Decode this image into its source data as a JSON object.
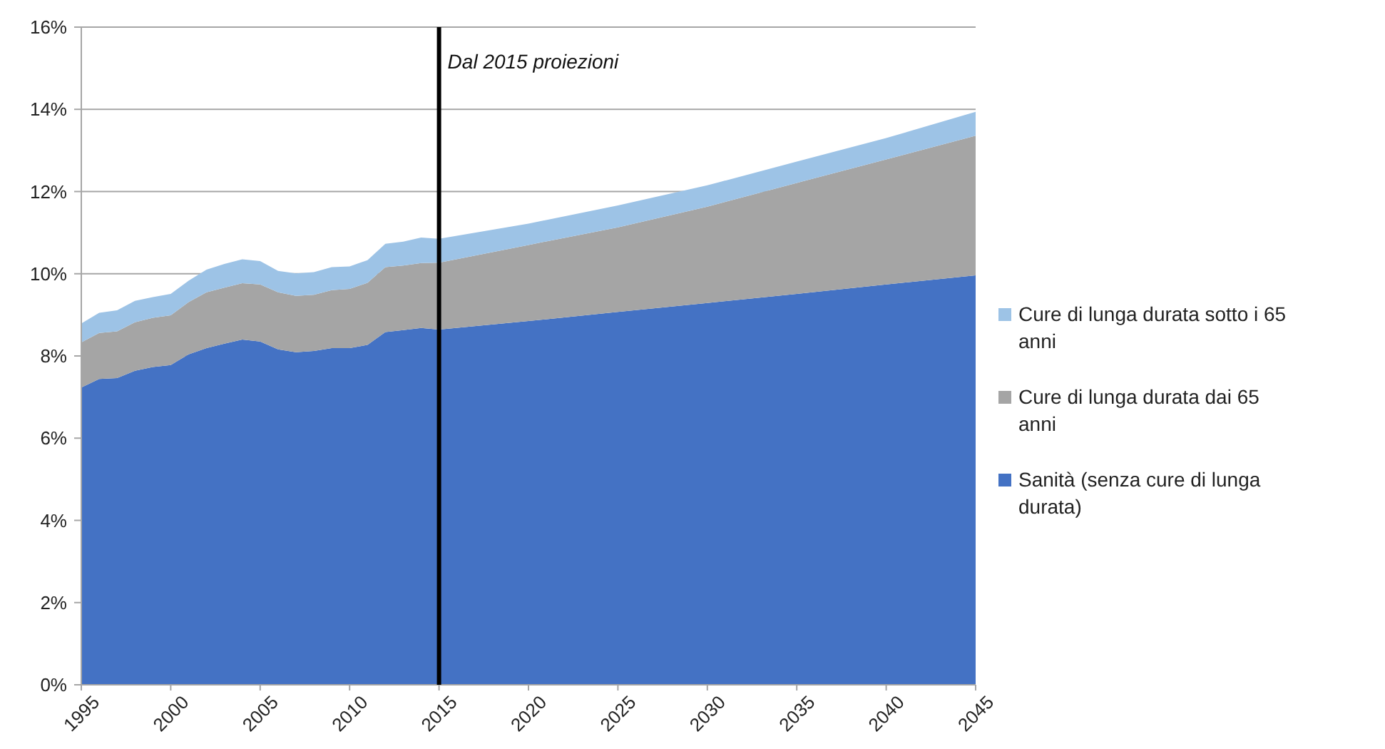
{
  "chart_data": {
    "type": "area",
    "stacked": true,
    "x": [
      1995,
      1996,
      1997,
      1998,
      1999,
      2000,
      2001,
      2002,
      2003,
      2004,
      2005,
      2006,
      2007,
      2008,
      2009,
      2010,
      2011,
      2012,
      2013,
      2014,
      2015,
      2020,
      2025,
      2030,
      2035,
      2040,
      2045
    ],
    "series": [
      {
        "name": "Sanità (senza cure di lunga durata)",
        "color": "#4472c4",
        "values": [
          7.23,
          7.44,
          7.46,
          7.64,
          7.73,
          7.78,
          8.04,
          8.19,
          8.3,
          8.4,
          8.35,
          8.16,
          8.09,
          8.12,
          8.19,
          8.19,
          8.27,
          8.58,
          8.63,
          8.68,
          8.64,
          8.85,
          9.07,
          9.29,
          9.51,
          9.74,
          9.96
        ]
      },
      {
        "name": "Cure di lunga durata dai 65 anni",
        "color": "#a5a5a5",
        "values": [
          1.1,
          1.12,
          1.14,
          1.18,
          1.2,
          1.21,
          1.27,
          1.36,
          1.36,
          1.37,
          1.39,
          1.39,
          1.37,
          1.37,
          1.41,
          1.44,
          1.51,
          1.58,
          1.57,
          1.58,
          1.63,
          1.85,
          2.06,
          2.34,
          2.7,
          3.04,
          3.4
        ]
      },
      {
        "name": "Cure di lunga durata sotto i 65 anni",
        "color": "#9dc3e6",
        "values": [
          0.46,
          0.49,
          0.51,
          0.52,
          0.5,
          0.52,
          0.52,
          0.55,
          0.58,
          0.58,
          0.57,
          0.52,
          0.55,
          0.55,
          0.56,
          0.55,
          0.55,
          0.57,
          0.58,
          0.62,
          0.58,
          0.52,
          0.53,
          0.52,
          0.52,
          0.52,
          0.58
        ]
      }
    ],
    "xlim": [
      1995,
      2045
    ],
    "xticks": [
      1995,
      2000,
      2005,
      2010,
      2015,
      2020,
      2025,
      2030,
      2035,
      2040,
      2045
    ],
    "ylim": [
      0,
      16
    ],
    "yticks": [
      {
        "value": 0,
        "label": "0%"
      },
      {
        "value": 2,
        "label": "2%"
      },
      {
        "value": 4,
        "label": "4%"
      },
      {
        "value": 6,
        "label": "6%"
      },
      {
        "value": 8,
        "label": "8%"
      },
      {
        "value": 10,
        "label": "10%"
      },
      {
        "value": 12,
        "label": "12%"
      },
      {
        "value": 14,
        "label": "14%"
      },
      {
        "value": 16,
        "label": "16%"
      }
    ],
    "grid": "y",
    "legend": "right",
    "ref_lines": [
      {
        "axis": "x",
        "value": 2015,
        "label": "Dal 2015 proiezioni",
        "color": "#000000"
      }
    ]
  }
}
